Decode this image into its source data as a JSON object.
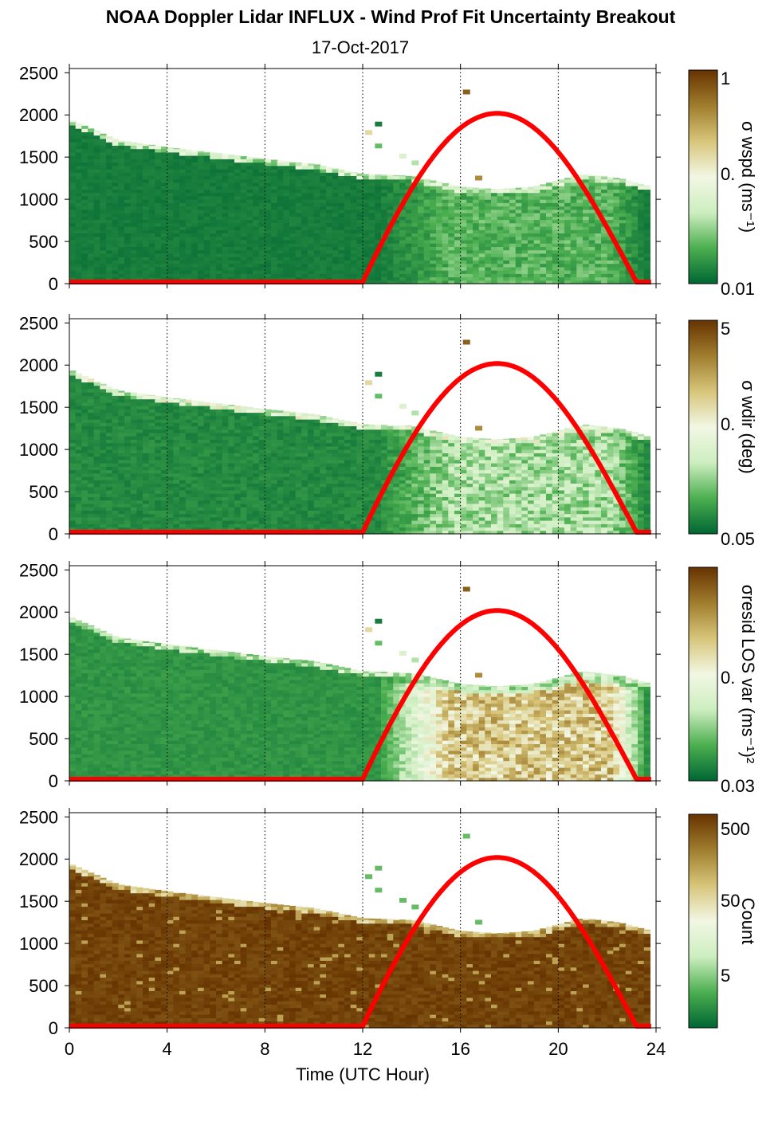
{
  "title": "NOAA Doppler Lidar INFLUX - Wind Prof Fit Uncertainty Breakout",
  "subtitle": "17-Oct-2017",
  "xlabel": "Time (UTC Hour)",
  "colors": {
    "dark_green": "#006633",
    "mid_green": "#4caf50",
    "light_green": "#cdeec0",
    "pale": "#f2f7e4",
    "khaki": "#d7c57a",
    "brown": "#a07d2e",
    "dark_brown": "#663300",
    "sun_curve": "#ff0000"
  },
  "chart_data": [
    {
      "type": "heatmap",
      "colorbar_label": "σ wspd (ms⁻¹)",
      "colorbar_ticks": [
        "1",
        "0.",
        "0.01"
      ],
      "xticks": [
        "0",
        "4",
        "8",
        "12",
        "16",
        "20",
        "24"
      ],
      "yticks": [
        "0",
        "500",
        "1000",
        "1500",
        "2000",
        "2500"
      ],
      "xlim": [
        0,
        24
      ],
      "ylim": [
        0,
        2550
      ],
      "grid": "dotted vertical lines every 4 hours",
      "profile_top_m": [
        [
          0,
          1950
        ],
        [
          2,
          1700
        ],
        [
          4,
          1620
        ],
        [
          6,
          1550
        ],
        [
          8,
          1480
        ],
        [
          10,
          1420
        ],
        [
          12,
          1300
        ],
        [
          14,
          1280
        ],
        [
          16,
          1150
        ],
        [
          17.5,
          1120
        ],
        [
          19,
          1150
        ],
        [
          21,
          1300
        ],
        [
          22.5,
          1250
        ],
        [
          23.8,
          1150
        ]
      ],
      "sun_curve_peak": {
        "hour": 17.5,
        "height_m": 2000
      },
      "sun_curve_zero_hours": [
        12,
        23.2
      ]
    },
    {
      "type": "heatmap",
      "colorbar_label": "σ wdir (deg)",
      "colorbar_ticks": [
        "5",
        "0.",
        "0.05"
      ],
      "xticks": [
        "0",
        "4",
        "8",
        "12",
        "16",
        "20",
        "24"
      ],
      "yticks": [
        "0",
        "500",
        "1000",
        "1500",
        "2000",
        "2500"
      ],
      "xlim": [
        0,
        24
      ],
      "ylim": [
        0,
        2550
      ],
      "grid": "dotted vertical lines every 4 hours",
      "profile_top_m": [
        [
          0,
          1950
        ],
        [
          2,
          1700
        ],
        [
          4,
          1620
        ],
        [
          6,
          1550
        ],
        [
          8,
          1480
        ],
        [
          10,
          1420
        ],
        [
          12,
          1300
        ],
        [
          14,
          1280
        ],
        [
          16,
          1150
        ],
        [
          17.5,
          1120
        ],
        [
          19,
          1150
        ],
        [
          21,
          1300
        ],
        [
          22.5,
          1250
        ],
        [
          23.8,
          1150
        ]
      ],
      "sun_curve_peak": {
        "hour": 17.5,
        "height_m": 2000
      },
      "sun_curve_zero_hours": [
        12,
        23.2
      ]
    },
    {
      "type": "heatmap",
      "colorbar_label": "σresid LOS var (ms⁻¹)²",
      "colorbar_ticks": [
        "0.",
        "0.03"
      ],
      "xticks": [
        "0",
        "4",
        "8",
        "12",
        "16",
        "20",
        "24"
      ],
      "yticks": [
        "0",
        "500",
        "1000",
        "1500",
        "2000",
        "2500"
      ],
      "xlim": [
        0,
        24
      ],
      "ylim": [
        0,
        2550
      ],
      "grid": "dotted vertical lines every 4 hours",
      "profile_top_m": [
        [
          0,
          1950
        ],
        [
          2,
          1700
        ],
        [
          4,
          1620
        ],
        [
          6,
          1550
        ],
        [
          8,
          1480
        ],
        [
          10,
          1420
        ],
        [
          12,
          1300
        ],
        [
          14,
          1280
        ],
        [
          16,
          1150
        ],
        [
          17.5,
          1120
        ],
        [
          19,
          1150
        ],
        [
          21,
          1300
        ],
        [
          22.5,
          1250
        ],
        [
          23.8,
          1150
        ]
      ],
      "sun_curve_peak": {
        "hour": 17.5,
        "height_m": 2000
      },
      "sun_curve_zero_hours": [
        12,
        23.2
      ]
    },
    {
      "type": "heatmap",
      "colorbar_label": "Count",
      "colorbar_ticks": [
        "500",
        "50",
        "5"
      ],
      "xticks": [
        "0",
        "4",
        "8",
        "12",
        "16",
        "20",
        "24"
      ],
      "yticks": [
        "0",
        "500",
        "1000",
        "1500",
        "2000",
        "2500"
      ],
      "xlim": [
        0,
        24
      ],
      "ylim": [
        0,
        2550
      ],
      "grid": "dotted vertical lines every 4 hours",
      "profile_top_m": [
        [
          0,
          1950
        ],
        [
          2,
          1700
        ],
        [
          4,
          1620
        ],
        [
          6,
          1550
        ],
        [
          8,
          1480
        ],
        [
          10,
          1420
        ],
        [
          12,
          1300
        ],
        [
          14,
          1280
        ],
        [
          16,
          1150
        ],
        [
          17.5,
          1120
        ],
        [
          19,
          1150
        ],
        [
          21,
          1300
        ],
        [
          22.5,
          1250
        ],
        [
          23.8,
          1150
        ]
      ],
      "sun_curve_peak": {
        "hour": 17.5,
        "height_m": 2000
      },
      "sun_curve_zero_hours": [
        12,
        23.2
      ]
    }
  ]
}
